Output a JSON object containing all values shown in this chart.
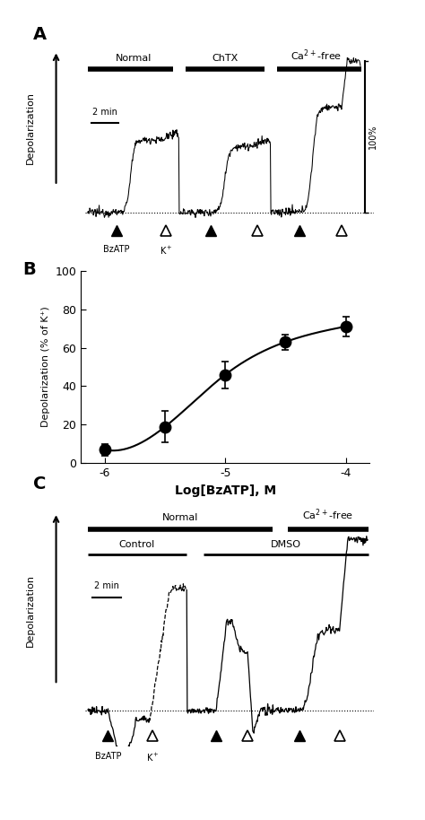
{
  "fig_width": 4.74,
  "fig_height": 9.14,
  "bg_color": "#ffffff",
  "panel_B": {
    "label": "B",
    "x": [
      -6,
      -5.5,
      -5,
      -4.5,
      -4
    ],
    "y": [
      7,
      19,
      46,
      63,
      71
    ],
    "yerr": [
      3,
      8,
      7,
      4,
      5
    ],
    "xlabel": "Log[BzATP], M",
    "ylabel": "Depolarization (% of K⁺)",
    "xlim": [
      -6.2,
      -3.8
    ],
    "ylim": [
      0,
      100
    ],
    "xticks": [
      -6,
      -5,
      -4
    ],
    "xtick_labels": [
      "-6",
      "-5",
      "-4"
    ],
    "yticks": [
      0,
      20,
      40,
      60,
      80,
      100
    ]
  }
}
